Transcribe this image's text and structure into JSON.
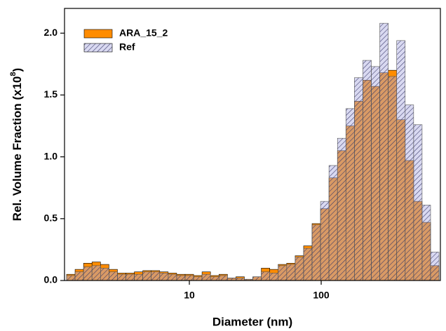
{
  "chart_data": {
    "type": "histogram",
    "xlabel": "Diameter (nm)",
    "ylabel_parts": [
      "Rel. Volume Fraction (x10",
      "8",
      ")"
    ],
    "xscale": "log",
    "xlim": [
      1.13,
      802
    ],
    "xticks": [
      10,
      100
    ],
    "ylim": [
      0,
      2.2
    ],
    "yticks": [
      {
        "value": 0,
        "label": "0.0"
      },
      0.5,
      {
        "value": 1,
        "label": "1.0"
      },
      1.5,
      {
        "value": 2,
        "label": "2.0"
      }
    ],
    "legend": "upper left",
    "bins": [
      1.172,
      1.359,
      1.576,
      1.827,
      2.118,
      2.455,
      2.847,
      3.3,
      3.825,
      4.435,
      5.14,
      5.96,
      6.908,
      8.01,
      9.286,
      10.77,
      12.48,
      14.47,
      16.78,
      19.45,
      22.54,
      26.14,
      30.3,
      35.13,
      40.73,
      47.21,
      54.73,
      63.46,
      73.57,
      85.28,
      98.86,
      114.6,
      132.9,
      154.0,
      178.6,
      207.0,
      240.0,
      278.2,
      322.6,
      374.0,
      433.5,
      502.6,
      582.7,
      675.5,
      783.1
    ],
    "series": [
      {
        "name": "ARA_15_2",
        "color": "#ff8c00",
        "values": [
          0.05,
          0.09,
          0.14,
          0.15,
          0.13,
          0.09,
          0.06,
          0.06,
          0.07,
          0.08,
          0.08,
          0.07,
          0.06,
          0.05,
          0.05,
          0.04,
          0.07,
          0.04,
          0.05,
          0.02,
          0.03,
          0.01,
          0.03,
          0.1,
          0.09,
          0.13,
          0.14,
          0.2,
          0.28,
          0.46,
          0.58,
          0.83,
          1.05,
          1.25,
          1.45,
          1.62,
          1.57,
          1.68,
          1.7,
          1.3,
          0.97,
          0.64,
          0.47,
          0.12
        ]
      },
      {
        "name": "Ref",
        "color": "#9a9ad6",
        "values": [
          0.04,
          0.07,
          0.11,
          0.12,
          0.1,
          0.07,
          0.05,
          0.05,
          0.05,
          0.07,
          0.07,
          0.06,
          0.05,
          0.04,
          0.04,
          0.03,
          0.05,
          0.03,
          0.04,
          0.02,
          0.02,
          0.01,
          0.03,
          0.07,
          0.06,
          0.12,
          0.13,
          0.19,
          0.26,
          0.45,
          0.64,
          0.93,
          1.15,
          1.39,
          1.64,
          1.78,
          1.73,
          2.08,
          1.65,
          1.94,
          1.42,
          1.26,
          0.61,
          0.23
        ]
      }
    ]
  }
}
